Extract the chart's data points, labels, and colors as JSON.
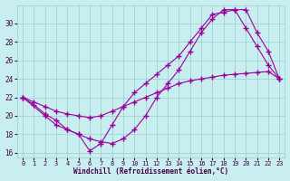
{
  "xlabel": "Windchill (Refroidissement éolien,°C)",
  "bg_color": "#c8eef0",
  "line_color": "#990099",
  "grid_color": "#99cccc",
  "xlim": [
    -0.5,
    23.5
  ],
  "ylim": [
    15.5,
    32.0
  ],
  "xticks": [
    0,
    1,
    2,
    3,
    4,
    5,
    6,
    7,
    8,
    9,
    10,
    11,
    12,
    13,
    14,
    15,
    16,
    17,
    18,
    19,
    20,
    21,
    22,
    23
  ],
  "yticks": [
    16,
    18,
    20,
    22,
    24,
    26,
    28,
    30
  ],
  "line1_x": [
    0,
    1,
    2,
    3,
    4,
    5,
    6,
    7,
    8,
    9,
    10,
    11,
    12,
    13,
    14,
    15,
    16,
    17,
    18,
    19,
    20,
    21,
    22,
    23
  ],
  "line1_y": [
    22.0,
    21.5,
    21.0,
    20.5,
    20.2,
    20.0,
    19.8,
    20.0,
    20.5,
    21.0,
    21.5,
    22.0,
    22.5,
    23.0,
    23.5,
    23.8,
    24.0,
    24.2,
    24.4,
    24.5,
    24.6,
    24.7,
    24.8,
    24.0
  ],
  "line2_x": [
    0,
    2,
    3,
    4,
    5,
    6,
    7,
    8,
    9,
    10,
    11,
    12,
    13,
    14,
    15,
    16,
    17,
    18,
    19,
    20,
    21,
    22,
    23
  ],
  "line2_y": [
    22.0,
    20.0,
    19.0,
    18.5,
    18.0,
    16.2,
    17.0,
    19.0,
    21.0,
    22.5,
    23.5,
    24.5,
    25.5,
    26.5,
    28.0,
    29.5,
    31.0,
    31.2,
    31.5,
    29.5,
    27.5,
    25.5,
    24.0
  ],
  "line3_x": [
    0,
    1,
    2,
    3,
    4,
    5,
    6,
    7,
    8,
    9,
    10,
    11,
    12,
    13,
    14,
    15,
    16,
    17,
    18,
    19,
    20,
    21,
    22,
    23
  ],
  "line3_y": [
    22.0,
    21.2,
    20.2,
    19.5,
    18.5,
    18.0,
    17.5,
    17.2,
    17.0,
    17.5,
    18.5,
    20.0,
    22.0,
    23.5,
    25.0,
    27.0,
    29.0,
    30.5,
    31.5,
    31.5,
    31.5,
    29.0,
    27.0,
    24.0
  ]
}
